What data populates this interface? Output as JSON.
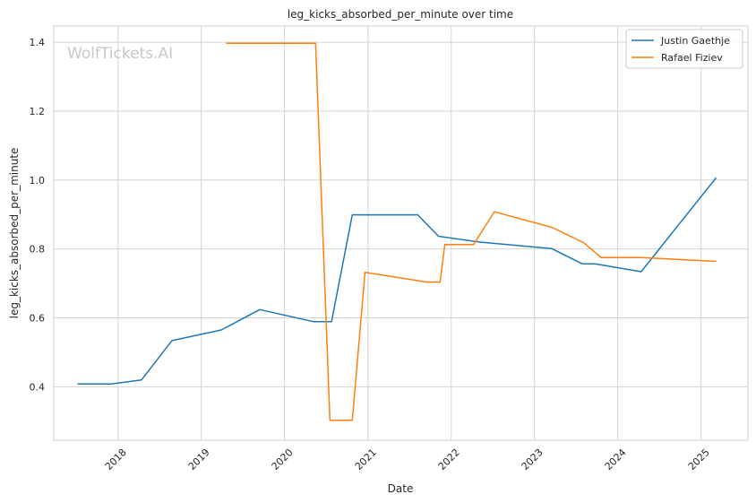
{
  "chart_data": {
    "type": "line",
    "title": "leg_kicks_absorbed_per_minute over time",
    "xlabel": "Date",
    "ylabel": "leg_kicks_absorbed_per_minute",
    "watermark": "WolfTickets.AI",
    "xlim": [
      "2017-03-25",
      "2025-07-25"
    ],
    "ylim": [
      0.245,
      1.447
    ],
    "x_ticks": [
      "2018",
      "2019",
      "2020",
      "2021",
      "2022",
      "2023",
      "2024",
      "2025"
    ],
    "y_ticks": [
      "0.4",
      "0.6",
      "0.8",
      "1.0",
      "1.2",
      "1.4"
    ],
    "grid": true,
    "legend_position": "top-right",
    "series": [
      {
        "name": "Justin Gaethje",
        "color": "#1f77b4",
        "points": [
          [
            "2017-07-07",
            0.408
          ],
          [
            "2017-12-02",
            0.408
          ],
          [
            "2018-04-14",
            0.42
          ],
          [
            "2018-08-25",
            0.534
          ],
          [
            "2019-03-30",
            0.565
          ],
          [
            "2019-09-14",
            0.624
          ],
          [
            "2020-05-09",
            0.589
          ],
          [
            "2020-07-25",
            0.589
          ],
          [
            "2020-10-24",
            0.899
          ],
          [
            "2021-08-07",
            0.899
          ],
          [
            "2021-11-06",
            0.837
          ],
          [
            "2022-05-07",
            0.82
          ],
          [
            "2023-03-18",
            0.801
          ],
          [
            "2023-07-29",
            0.757
          ],
          [
            "2023-09-23",
            0.757
          ],
          [
            "2024-04-13",
            0.734
          ],
          [
            "2025-03-08",
            1.007
          ]
        ]
      },
      {
        "name": "Rafael Fiziev",
        "color": "#ff7f0e",
        "points": [
          [
            "2019-04-20",
            1.397
          ],
          [
            "2020-05-16",
            1.397
          ],
          [
            "2020-07-18",
            0.303
          ],
          [
            "2020-10-24",
            0.303
          ],
          [
            "2020-12-19",
            0.732
          ],
          [
            "2021-09-18",
            0.704
          ],
          [
            "2021-11-13",
            0.704
          ],
          [
            "2021-12-04",
            0.813
          ],
          [
            "2022-04-09",
            0.813
          ],
          [
            "2022-07-09",
            0.908
          ],
          [
            "2023-03-18",
            0.863
          ],
          [
            "2023-08-05",
            0.818
          ],
          [
            "2023-10-21",
            0.775
          ],
          [
            "2024-04-13",
            0.775
          ],
          [
            "2025-03-08",
            0.764
          ]
        ]
      }
    ]
  }
}
